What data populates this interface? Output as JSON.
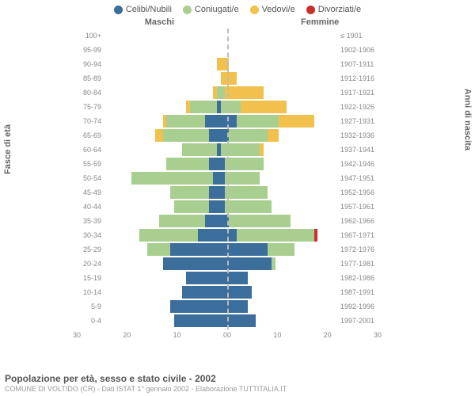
{
  "chart": {
    "type": "population-pyramid",
    "legend": [
      {
        "label": "Celibi/Nubili",
        "color": "#3b6e9b"
      },
      {
        "label": "Coniugati/e",
        "color": "#a8cf8f"
      },
      {
        "label": "Vedovi/e",
        "color": "#f2c04d"
      },
      {
        "label": "Divorziati/e",
        "color": "#c9302c"
      }
    ],
    "header_left": "Maschi",
    "header_right": "Femmine",
    "axis_left_label": "Fasce di età",
    "axis_right_label": "Anni di nascita",
    "xmax": 30,
    "xticks_left": [
      "30",
      "20",
      "10",
      "0"
    ],
    "xticks_right": [
      "0",
      "10",
      "20",
      "30"
    ],
    "rows": [
      {
        "age": "100+",
        "birth": "≤ 1901",
        "m": [
          0,
          0,
          0,
          0
        ],
        "f": [
          0,
          0,
          0,
          0
        ]
      },
      {
        "age": "95-99",
        "birth": "1902-1906",
        "m": [
          0,
          0,
          0,
          0
        ],
        "f": [
          0,
          0,
          0,
          0
        ]
      },
      {
        "age": "90-94",
        "birth": "1907-1911",
        "m": [
          0,
          0,
          1,
          0
        ],
        "f": [
          0,
          0,
          2,
          0
        ]
      },
      {
        "age": "85-89",
        "birth": "1912-1916",
        "m": [
          0,
          0,
          0,
          0
        ],
        "f": [
          0,
          0,
          4,
          0
        ]
      },
      {
        "age": "80-84",
        "birth": "1917-1921",
        "m": [
          0,
          1,
          1,
          0
        ],
        "f": [
          0,
          1,
          10,
          0
        ]
      },
      {
        "age": "75-79",
        "birth": "1922-1926",
        "m": [
          1,
          7,
          1,
          0
        ],
        "f": [
          0,
          5,
          12,
          0
        ]
      },
      {
        "age": "70-74",
        "birth": "1927-1931",
        "m": [
          4,
          10,
          1,
          0
        ],
        "f": [
          4,
          11,
          9,
          0
        ]
      },
      {
        "age": "65-69",
        "birth": "1932-1936",
        "m": [
          3,
          12,
          2,
          0
        ],
        "f": [
          2,
          10,
          3,
          0
        ]
      },
      {
        "age": "60-64",
        "birth": "1937-1941",
        "m": [
          1,
          9,
          0,
          0
        ],
        "f": [
          0,
          10,
          1,
          0
        ]
      },
      {
        "age": "55-59",
        "birth": "1942-1946",
        "m": [
          3,
          11,
          0,
          0
        ],
        "f": [
          1,
          10,
          0,
          0
        ]
      },
      {
        "age": "50-54",
        "birth": "1947-1951",
        "m": [
          2,
          21,
          0,
          0
        ],
        "f": [
          1,
          9,
          0,
          0
        ]
      },
      {
        "age": "45-49",
        "birth": "1952-1956",
        "m": [
          3,
          10,
          0,
          0
        ],
        "f": [
          1,
          11,
          0,
          0
        ]
      },
      {
        "age": "40-44",
        "birth": "1957-1961",
        "m": [
          3,
          9,
          0,
          0
        ],
        "f": [
          1,
          12,
          0,
          0
        ]
      },
      {
        "age": "35-39",
        "birth": "1962-1966",
        "m": [
          4,
          12,
          0,
          0
        ],
        "f": [
          2,
          16,
          0,
          0
        ]
      },
      {
        "age": "30-34",
        "birth": "1967-1971",
        "m": [
          6,
          15,
          0,
          0
        ],
        "f": [
          4,
          20,
          0,
          1
        ]
      },
      {
        "age": "25-29",
        "birth": "1972-1976",
        "m": [
          13,
          6,
          0,
          0
        ],
        "f": [
          12,
          7,
          0,
          0
        ]
      },
      {
        "age": "20-24",
        "birth": "1977-1981",
        "m": [
          15,
          0,
          0,
          0
        ],
        "f": [
          13,
          1,
          0,
          0
        ]
      },
      {
        "age": "15-19",
        "birth": "1982-1986",
        "m": [
          9,
          0,
          0,
          0
        ],
        "f": [
          7,
          0,
          0,
          0
        ]
      },
      {
        "age": "10-14",
        "birth": "1987-1991",
        "m": [
          10,
          0,
          0,
          0
        ],
        "f": [
          8,
          0,
          0,
          0
        ]
      },
      {
        "age": "5-9",
        "birth": "1992-1996",
        "m": [
          13,
          0,
          0,
          0
        ],
        "f": [
          7,
          0,
          0,
          0
        ]
      },
      {
        "age": "0-4",
        "birth": "1997-2001",
        "m": [
          12,
          0,
          0,
          0
        ],
        "f": [
          9,
          0,
          0,
          0
        ]
      }
    ],
    "title": "Popolazione per età, sesso e stato civile - 2002",
    "subtitle": "COMUNE DI VOLTIDO (CR) - Dati ISTAT 1° gennaio 2002 - Elaborazione TUTTITALIA.IT"
  }
}
